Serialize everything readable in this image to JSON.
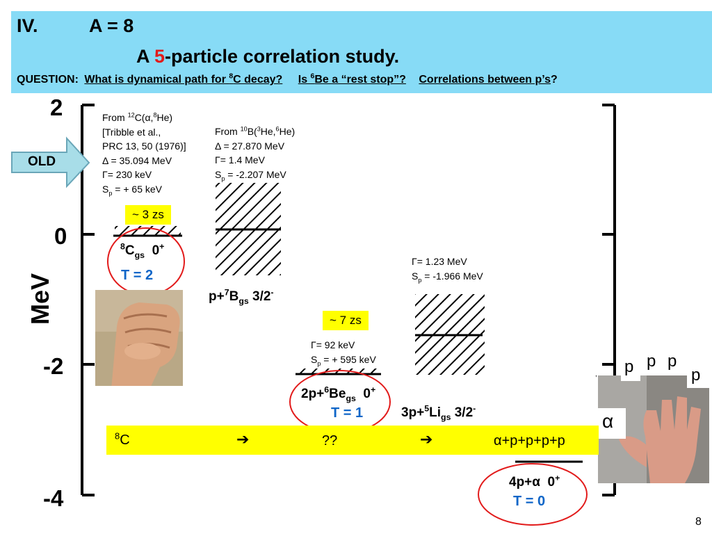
{
  "header": {
    "roman": "IV.",
    "a_value": "A = 8",
    "subtitle_pre": "A ",
    "subtitle_num": "5",
    "subtitle_post": "-particle correlation study.",
    "question_label": "QUESTION:",
    "q1": "What is dynamical path for 8C decay?",
    "q2": "Is 6Be a “rest stop”?",
    "q3": "Correlations between p’s",
    "q3_end": "?"
  },
  "axis": {
    "label": "MeV",
    "ticks": [
      "2",
      "0",
      "-2",
      "-4"
    ]
  },
  "old_arrow": {
    "label": "OLD"
  },
  "boxes": {
    "c8_lifetime": "~ 3 zs",
    "be6_lifetime": "~ 7 zs"
  },
  "states": {
    "c8": {
      "label": "8Cgs 0+",
      "isospin": "T = 2"
    },
    "b7": {
      "label": "p+7Bgs 3/2-"
    },
    "be6": {
      "label": "2p+6Begs 0+",
      "isospin": "T = 1"
    },
    "li5": {
      "label": "3p+5Ligs 3/2-"
    },
    "alpha": {
      "label": "4p+α 0+",
      "isospin": "T = 0"
    }
  },
  "annotations": {
    "c12": [
      "From 12C(α,8He)",
      "[Tribble et al.,",
      "PRC 13, 50 (1976)]",
      "Δ = 35.094 MeV",
      "Γ= 230 keV",
      "Sp = + 65 keV"
    ],
    "b10": [
      "From 10B(3He,6He)",
      "Δ = 27.870 MeV",
      "Γ= 1.4 MeV",
      "Sp = -2.207 MeV"
    ],
    "li5": [
      "Γ= 1.23 MeV",
      "Sp = -1.966 MeV"
    ],
    "be6": [
      "Γ= 92 keV",
      "Sp = + 595 keV"
    ]
  },
  "decay_bar": {
    "start": "8C",
    "arrow1": "➔",
    "middle": "??",
    "arrow2": "➔",
    "end": "α+p+p+p+p"
  },
  "hand_labels": [
    "p",
    "p",
    "p",
    "p",
    "α"
  ],
  "images": {
    "fist": "fist-photo",
    "hand": "open-hand-photo"
  },
  "page_number": "8",
  "colors": {
    "header_bg": "#87dbf6",
    "highlight": "#ffff00",
    "circle": "#e21b1b",
    "isospin": "#1066c8",
    "arrow_fill": "#a8dde8"
  }
}
